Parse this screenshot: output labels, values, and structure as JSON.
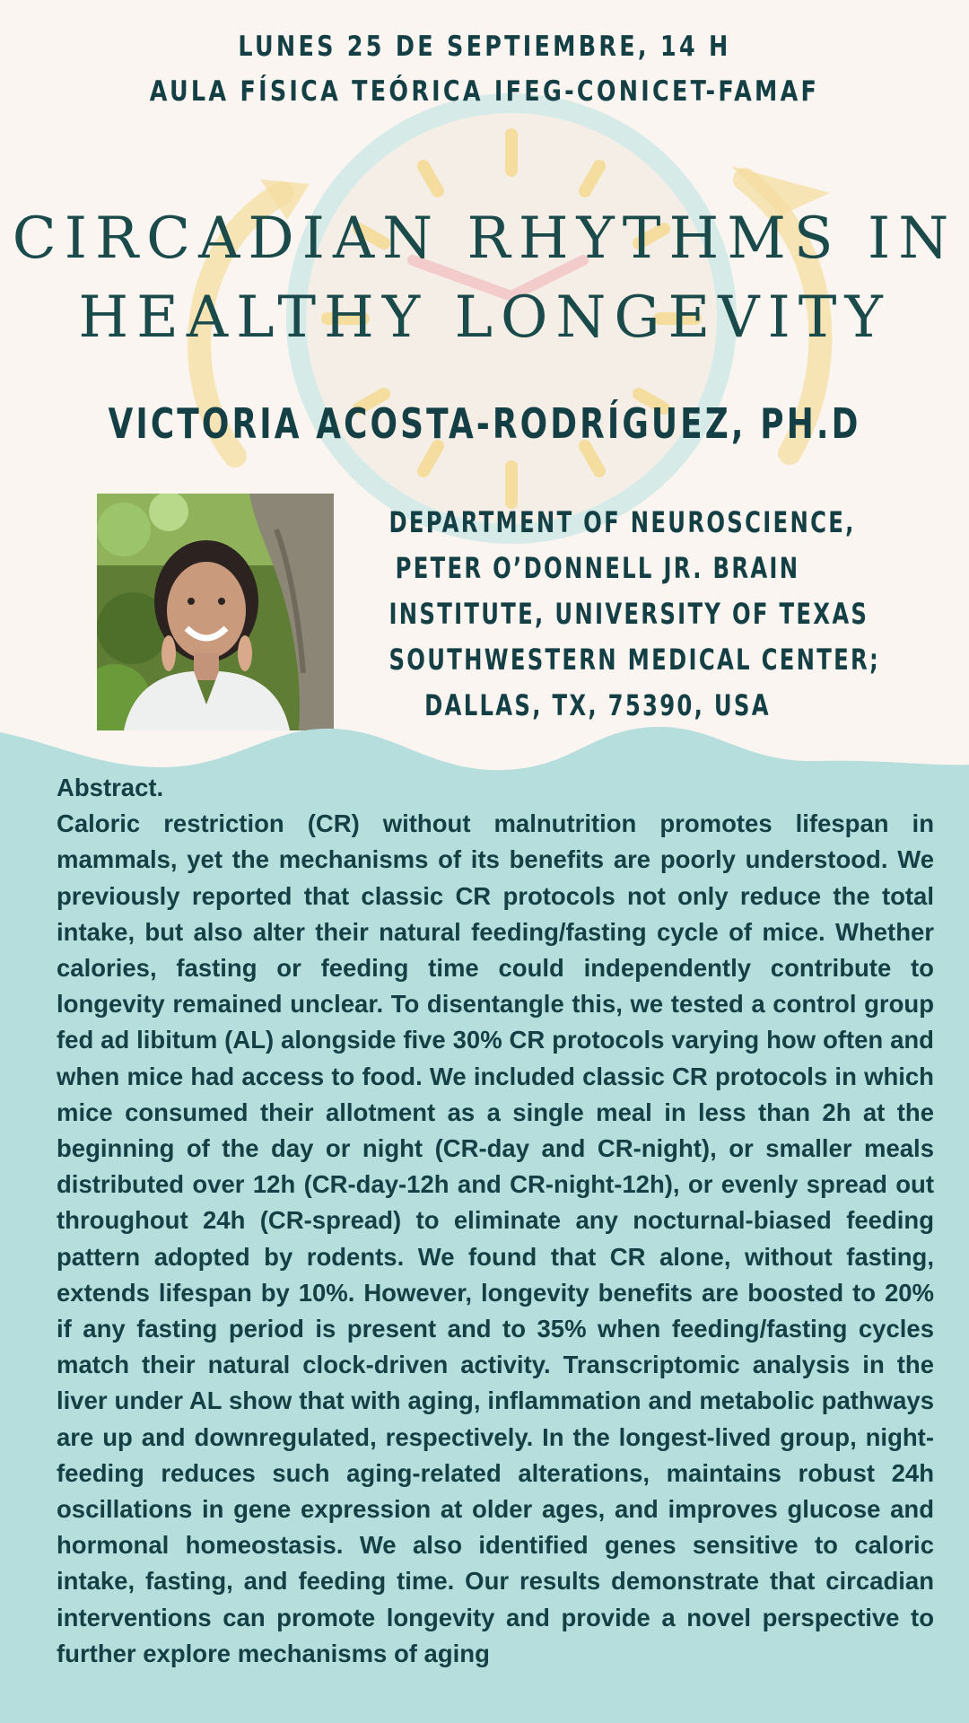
{
  "event": {
    "date_time": "LUNES 25 DE SEPTIEMBRE, 14 H",
    "venue": "AULA FÍSICA TEÓRICA IFEG-CONICET-FAMAF"
  },
  "talk": {
    "title_line_1": "CIRCADIAN RHYTHMS IN",
    "title_line_2": "HEALTHY LONGEVITY"
  },
  "speaker": {
    "name": "VICTORIA ACOSTA-RODRÍGUEZ, PH.D",
    "affiliation_lines": [
      "DEPARTMENT OF NEUROSCIENCE,",
      "PETER O’DONNELL JR. BRAIN",
      "INSTITUTE, UNIVERSITY OF TEXAS",
      "SOUTHWESTERN MEDICAL CENTER;",
      "DALLAS, TX, 75390, USA"
    ]
  },
  "abstract": {
    "heading": "Abstract.",
    "body": "Caloric restriction (CR) without malnutrition promotes lifespan in mammals, yet the mechanisms of its benefits are poorly understood. We previously reported that classic CR protocols not only reduce the total intake, but also alter their natural feeding/fasting cycle of mice. Whether calories, fasting or feeding time could independently contribute to longevity remained unclear. To disentangle this, we tested a control group fed ad libitum (AL) alongside five 30% CR protocols varying how often and when mice had access to food. We included classic CR protocols in which mice consumed their allotment as a single meal in less than 2h at the beginning of the day or night (CR-day and CR-night), or smaller meals distributed over 12h (CR-day-12h and CR-night-12h), or evenly spread out throughout 24h (CR-spread) to eliminate any nocturnal-biased feeding pattern adopted by rodents. We found that CR alone, without fasting, extends lifespan by 10%. However, longevity benefits are boosted to 20% if any fasting period is present and to 35% when feeding/fasting cycles match their natural clock-driven activity. Transcriptomic analysis in the liver under AL show that with aging, inflammation and metabolic pathways are up and downregulated, respectively. In the longest-lived group, night-feeding reduces such aging-related alterations, maintains robust 24h oscillations in gene expression at older ages, and improves glucose and hormonal homeostasis. We also identified genes sensitive to caloric intake, fasting, and feeding time. Our results demonstrate that circadian interventions can promote longevity and provide a novel perspective to further explore mechanisms of aging"
  },
  "colors": {
    "background": "#faf5f0",
    "text": "#143f44",
    "wave": "#b5dedd",
    "clock_ring": "#d6ebe8",
    "clock_accent": "#f5d98e"
  },
  "icons": {
    "background_clock": "clock-icon",
    "speaker_photo": "portrait-photo"
  }
}
